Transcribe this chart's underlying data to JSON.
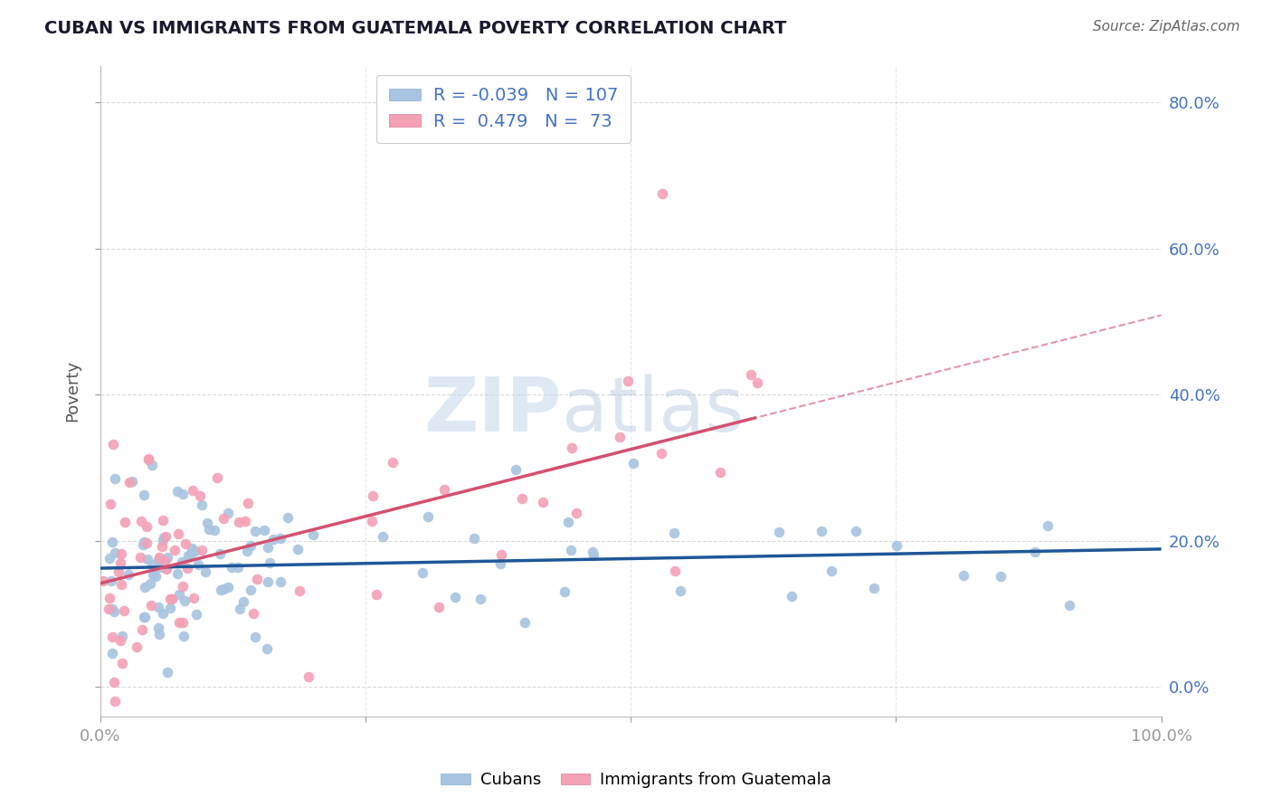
{
  "title": "CUBAN VS IMMIGRANTS FROM GUATEMALA POVERTY CORRELATION CHART",
  "source": "Source: ZipAtlas.com",
  "ylabel": "Poverty",
  "xlim": [
    0.0,
    1.0
  ],
  "ylim": [
    -0.04,
    0.85
  ],
  "ytick_vals": [
    0.0,
    0.2,
    0.4,
    0.6,
    0.8
  ],
  "ytick_labels_right": [
    "0.0%",
    "20.0%",
    "40.0%",
    "60.0%",
    "80.0%"
  ],
  "xtick_vals": [
    0.0,
    0.25,
    0.5,
    0.75,
    1.0
  ],
  "xtick_labels": [
    "0.0%",
    "",
    "",
    "",
    "100.0%"
  ],
  "legend_R1": "-0.039",
  "legend_N1": "107",
  "legend_R2": "0.479",
  "legend_N2": "73",
  "cubans_color": "#a8c4e0",
  "guatemalans_color": "#f4a0b5",
  "line1_color": "#1e5799",
  "line2_color": "#d45070",
  "watermark_zip_color": "#c5d8ea",
  "watermark_atlas_color": "#a8c0d8",
  "background_color": "#ffffff",
  "grid_color": "#d0d0d0",
  "axis_label_color": "#4472c4",
  "title_color": "#1a1a2e"
}
